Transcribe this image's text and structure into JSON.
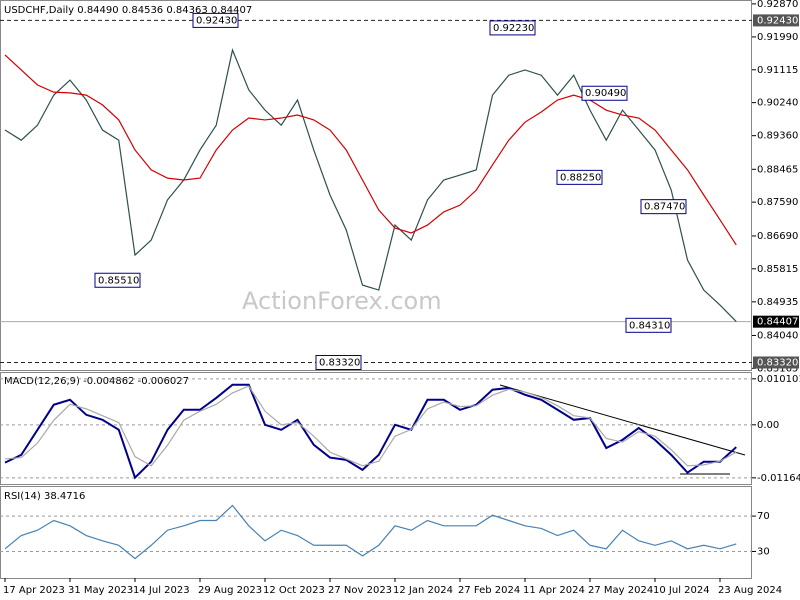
{
  "chart_data": [
    {
      "type": "line",
      "title": "USDCHF,Daily  0.84490 0.84536 0.84363 0.84407",
      "watermark": "ActionForex.com",
      "categories": [
        "17 Apr 2023",
        null,
        null,
        null,
        "31 May 2023",
        null,
        null,
        null,
        "14 Jul 2023",
        null,
        null,
        null,
        "29 Aug 2023",
        null,
        null,
        null,
        "12 Oct 2023",
        null,
        null,
        null,
        "27 Nov 2023",
        null,
        null,
        null,
        "12 Jan 2024",
        null,
        null,
        null,
        "27 Feb 2024",
        null,
        null,
        null,
        "11 Apr 2024",
        null,
        null,
        null,
        "27 May 2024",
        null,
        null,
        null,
        "10 Jul 2024",
        null,
        null,
        null,
        "23 Aug 2024",
        null
      ],
      "series": [
        {
          "color": "#2f4f4f",
          "values": [
            0.8951,
            0.8924,
            0.8964,
            0.9044,
            0.9084,
            0.9031,
            0.8951,
            0.8924,
            0.8618,
            0.8658,
            0.8765,
            0.8818,
            0.8898,
            0.8964,
            0.9164,
            0.9058,
            0.9004,
            0.8964,
            0.9031,
            0.8898,
            0.8778,
            0.8685,
            0.8538,
            0.8525,
            0.8698,
            0.8658,
            0.8765,
            0.8818,
            0.8831,
            0.8845,
            0.9044,
            0.9097,
            0.9111,
            0.9097,
            0.9044,
            0.9097,
            0.9004,
            0.8924,
            0.9004,
            0.8951,
            0.8898,
            0.8791,
            0.8605,
            0.8525,
            0.8485,
            0.8441
          ]
        },
        {
          "color": "#d40000",
          "values": [
            0.9151,
            0.9111,
            0.9071,
            0.9052,
            0.905,
            0.9044,
            0.9018,
            0.8978,
            0.8898,
            0.8845,
            0.8823,
            0.8818,
            0.8823,
            0.8898,
            0.8951,
            0.8983,
            0.8978,
            0.8983,
            0.8991,
            0.8978,
            0.8951,
            0.8898,
            0.8818,
            0.8738,
            0.869,
            0.8677,
            0.8698,
            0.8733,
            0.8751,
            0.8791,
            0.8858,
            0.8924,
            0.8972,
            0.8999,
            0.9031,
            0.9044,
            0.9031,
            0.9004,
            0.8991,
            0.8983,
            0.8951,
            0.8898,
            0.8845,
            0.8778,
            0.8712,
            0.8645
          ]
        }
      ],
      "ylim": [
        0.8312,
        0.9292
      ],
      "yticks": [
        {
          "value": 0.9287,
          "label": "0.92870"
        },
        {
          "value": 0.9199,
          "label": "0.91990"
        },
        0.91115,
        {
          "value": 0.9024,
          "label": "0.90240"
        },
        {
          "value": 0.8936,
          "label": "0.89360"
        },
        0.88465,
        {
          "value": 0.8759,
          "label": "0.87590"
        },
        {
          "value": 0.8669,
          "label": "0.86690"
        },
        0.85815,
        0.84935,
        {
          "value": 0.8404,
          "label": "0.84040"
        },
        0.83165
      ],
      "levels": [
        {
          "value": 0.9243,
          "label": "0.92430"
        },
        {
          "value": 0.8332,
          "label": "0.83320"
        }
      ],
      "current": {
        "value": 0.84407,
        "label": "0.84407"
      },
      "annotations": [
        {
          "value": 0.9243,
          "label": "0.92430"
        },
        {
          "value": 0.8551,
          "label": "0.85510"
        },
        {
          "value": 0.8332,
          "label": "0.83320"
        },
        {
          "value": 0.9223,
          "label": "0.92230"
        },
        {
          "value": 0.9049,
          "label": "0.90490"
        },
        {
          "value": 0.8825,
          "label": "0.88250"
        },
        {
          "value": 0.8747,
          "label": "0.87470"
        },
        {
          "value": 0.8431,
          "label": "0.84310"
        }
      ]
    },
    {
      "type": "line",
      "title": "MACD(12,26,9) -0.004862 -0.006027",
      "grid": true,
      "series": [
        {
          "color": "#00008b",
          "values": [
            -0.0083,
            -0.0066,
            -0.0011,
            0.0044,
            0.0055,
            0.0022,
            0.0011,
            -0.0011,
            -0.0116,
            -0.0081,
            -0.0011,
            0.0033,
            0.0033,
            0.0059,
            0.0088,
            0.0088,
            0,
            -0.0011,
            0.0011,
            -0.0044,
            -0.0072,
            -0.0077,
            -0.0099,
            -0.0066,
            0,
            -0.0011,
            0.0055,
            0.0055,
            0.0033,
            0.0044,
            0.0077,
            0.0081,
            0.0066,
            0.0055,
            0.0033,
            0.0011,
            0.0015,
            -0.0051,
            -0.0033,
            -0.0007,
            -0.0033,
            -0.0066,
            -0.0105,
            -0.0081,
            -0.0081,
            -0.0049
          ]
        },
        {
          "color": "#a9a9a9",
          "values": [
            -0.0075,
            -0.0072,
            -0.004,
            0.001,
            0.0045,
            0.0035,
            0.002,
            0.0005,
            -0.007,
            -0.009,
            -0.0045,
            0.001,
            0.003,
            0.0045,
            0.007,
            0.0085,
            0.003,
            0,
            0.0005,
            -0.0025,
            -0.006,
            -0.0075,
            -0.009,
            -0.008,
            -0.0025,
            -0.001,
            0.0035,
            0.005,
            0.004,
            0.0042,
            0.0065,
            0.0078,
            0.0072,
            0.006,
            0.0042,
            0.002,
            0.0015,
            -0.003,
            -0.0038,
            -0.0015,
            -0.0025,
            -0.0055,
            -0.009,
            -0.0088,
            -0.008,
            -0.006
          ]
        }
      ],
      "ylim": [
        -0.013,
        0.0116
      ],
      "yticks": [
        0.010101,
        {
          "value": 0,
          "label": "0.00"
        },
        -0.011645
      ]
    },
    {
      "type": "line",
      "title": "RSI(14) 38.4716",
      "grid": true,
      "series": [
        {
          "color": "#4682b4",
          "values": [
            33,
            48,
            54,
            65,
            59,
            48,
            42,
            37,
            22,
            37,
            54,
            59,
            65,
            65,
            82,
            59,
            42,
            54,
            48,
            37,
            37,
            37,
            25,
            37,
            59,
            54,
            65,
            59,
            59,
            59,
            71,
            65,
            59,
            56,
            48,
            54,
            37,
            33,
            54,
            42,
            37,
            42,
            33,
            37,
            33,
            38.5
          ]
        }
      ],
      "ylim": [
        0,
        104
      ],
      "yticks": [
        70,
        30
      ]
    }
  ]
}
